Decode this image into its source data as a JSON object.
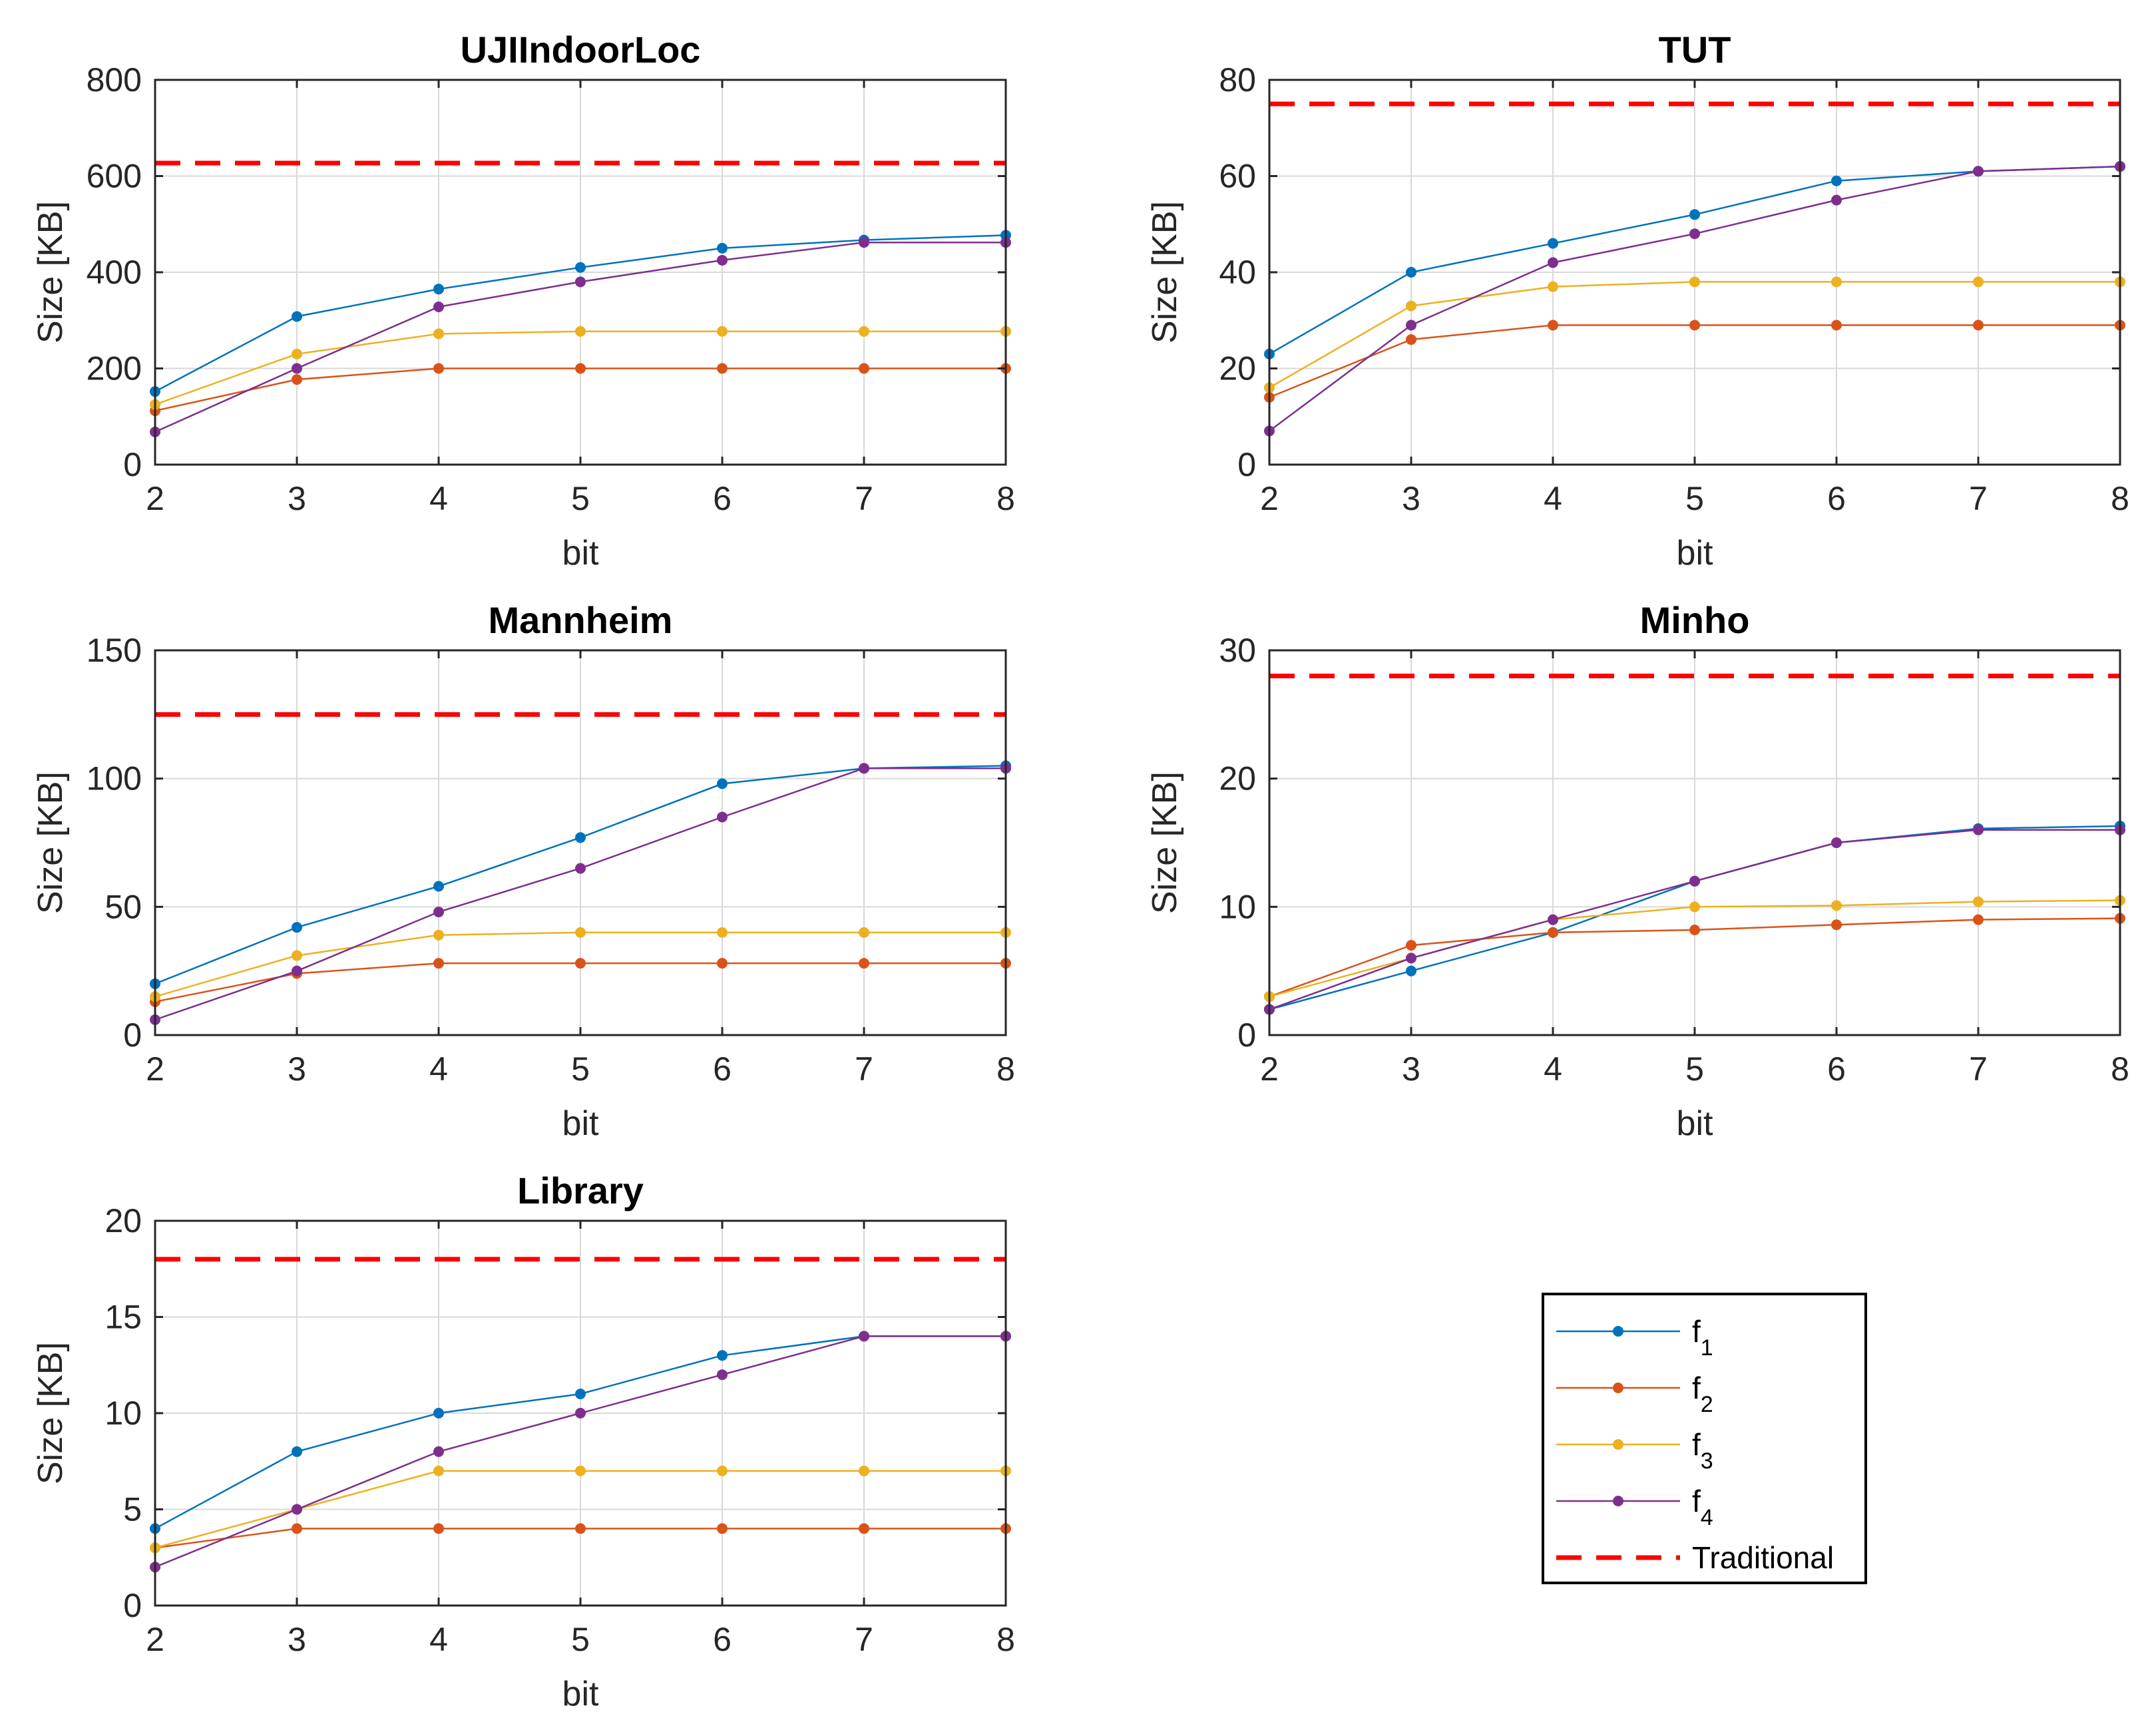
{
  "chart_data": [
    {
      "type": "line",
      "title": "UJIIndoorLoc",
      "xlabel": "bit",
      "ylabel": "Size [KB]",
      "x": [
        2,
        3,
        4,
        5,
        6,
        7,
        8
      ],
      "xlim": [
        2,
        8
      ],
      "ylim": [
        0,
        800
      ],
      "yticks": [
        0,
        200,
        400,
        600,
        800
      ],
      "grid": true,
      "series": [
        {
          "name": "f1",
          "color": "#0072BD",
          "values": [
            152,
            308,
            365,
            410,
            450,
            467,
            477
          ]
        },
        {
          "name": "f2",
          "color": "#D95319",
          "values": [
            112,
            177,
            200,
            200,
            200,
            200,
            200
          ]
        },
        {
          "name": "f3",
          "color": "#EDB120",
          "values": [
            125,
            230,
            272,
            277,
            277,
            277,
            277
          ]
        },
        {
          "name": "f4",
          "color": "#7E2F8E",
          "values": [
            68,
            200,
            328,
            380,
            425,
            462,
            462
          ]
        }
      ],
      "traditional": 627
    },
    {
      "type": "line",
      "title": "TUT",
      "xlabel": "bit",
      "ylabel": "Size [KB]",
      "x": [
        2,
        3,
        4,
        5,
        6,
        7,
        8
      ],
      "xlim": [
        2,
        8
      ],
      "ylim": [
        0,
        80
      ],
      "yticks": [
        0,
        20,
        40,
        60,
        80
      ],
      "grid": true,
      "series": [
        {
          "name": "f1",
          "color": "#0072BD",
          "values": [
            23,
            40,
            46,
            52,
            59,
            61,
            62
          ]
        },
        {
          "name": "f2",
          "color": "#D95319",
          "values": [
            14,
            26,
            29,
            29,
            29,
            29,
            29
          ]
        },
        {
          "name": "f3",
          "color": "#EDB120",
          "values": [
            16,
            33,
            37,
            38,
            38,
            38,
            38
          ]
        },
        {
          "name": "f4",
          "color": "#7E2F8E",
          "values": [
            7,
            29,
            42,
            48,
            55,
            61,
            62
          ]
        }
      ],
      "traditional": 75
    },
    {
      "type": "line",
      "title": "Mannheim",
      "xlabel": "bit",
      "ylabel": "Size [KB]",
      "x": [
        2,
        3,
        4,
        5,
        6,
        7,
        8
      ],
      "xlim": [
        2,
        8
      ],
      "ylim": [
        0,
        150
      ],
      "yticks": [
        0,
        50,
        100,
        150
      ],
      "grid": true,
      "series": [
        {
          "name": "f1",
          "color": "#0072BD",
          "values": [
            20,
            42,
            58,
            77,
            98,
            104,
            105
          ]
        },
        {
          "name": "f2",
          "color": "#D95319",
          "values": [
            13,
            24,
            28,
            28,
            28,
            28,
            28
          ]
        },
        {
          "name": "f3",
          "color": "#EDB120",
          "values": [
            15,
            31,
            39,
            40,
            40,
            40,
            40
          ]
        },
        {
          "name": "f4",
          "color": "#7E2F8E",
          "values": [
            6,
            25,
            48,
            65,
            85,
            104,
            104
          ]
        }
      ],
      "traditional": 125
    },
    {
      "type": "line",
      "title": "Minho",
      "xlabel": "bit",
      "ylabel": "Size [KB]",
      "x": [
        2,
        3,
        4,
        5,
        6,
        7,
        8
      ],
      "xlim": [
        2,
        8
      ],
      "ylim": [
        0,
        30
      ],
      "yticks": [
        0,
        10,
        20,
        30
      ],
      "grid": true,
      "series": [
        {
          "name": "f1",
          "color": "#0072BD",
          "values": [
            2,
            5,
            8,
            12,
            15,
            16.1,
            16.3
          ]
        },
        {
          "name": "f2",
          "color": "#D95319",
          "values": [
            3,
            7,
            8,
            8.2,
            8.6,
            9,
            9.1
          ]
        },
        {
          "name": "f3",
          "color": "#EDB120",
          "values": [
            3,
            6,
            9,
            10,
            10.1,
            10.4,
            10.5
          ]
        },
        {
          "name": "f4",
          "color": "#7E2F8E",
          "values": [
            2,
            6,
            9,
            12,
            15,
            16,
            16
          ]
        }
      ],
      "traditional": 28
    },
    {
      "type": "line",
      "title": "Library",
      "xlabel": "bit",
      "ylabel": "Size [KB]",
      "x": [
        2,
        3,
        4,
        5,
        6,
        7,
        8
      ],
      "xlim": [
        2,
        8
      ],
      "ylim": [
        0,
        20
      ],
      "yticks": [
        0,
        5,
        10,
        15,
        20
      ],
      "grid": true,
      "series": [
        {
          "name": "f1",
          "color": "#0072BD",
          "values": [
            4,
            8,
            10,
            11,
            13,
            14,
            14
          ]
        },
        {
          "name": "f2",
          "color": "#D95319",
          "values": [
            3,
            4,
            4,
            4,
            4,
            4,
            4
          ]
        },
        {
          "name": "f3",
          "color": "#EDB120",
          "values": [
            3,
            5,
            7,
            7,
            7,
            7,
            7
          ]
        },
        {
          "name": "f4",
          "color": "#7E2F8E",
          "values": [
            2,
            5,
            8,
            10,
            12,
            14,
            14
          ]
        }
      ],
      "traditional": 18
    }
  ],
  "legend": {
    "placement": "bottom-right",
    "entries": [
      {
        "base": "f",
        "sub": "1",
        "color": "#0072BD",
        "style": "line-marker"
      },
      {
        "base": "f",
        "sub": "2",
        "color": "#D95319",
        "style": "line-marker"
      },
      {
        "base": "f",
        "sub": "3",
        "color": "#EDB120",
        "style": "line-marker"
      },
      {
        "base": "f",
        "sub": "4",
        "color": "#7E2F8E",
        "style": "line-marker"
      },
      {
        "label": "Traditional",
        "color": "#FF0000",
        "style": "dashed"
      }
    ]
  }
}
